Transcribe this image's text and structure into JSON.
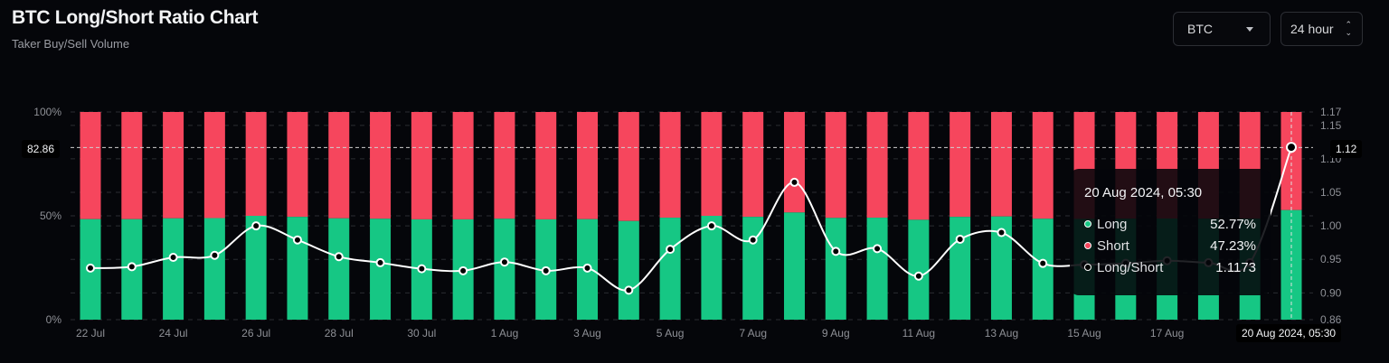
{
  "header": {
    "title": "BTC Long/Short Ratio Chart",
    "subtitle": "Taker Buy/Sell Volume"
  },
  "controls": {
    "symbol": "BTC",
    "interval": "24 hour"
  },
  "colors": {
    "long": "#16c784",
    "short": "#f6465d",
    "ratio": "#ffffff",
    "background": "#05060a"
  },
  "crosshair": {
    "left_label": "82.86",
    "right_label": "1.12",
    "x_label": "20 Aug 2024, 05:30"
  },
  "tooltip": {
    "date": "20 Aug 2024, 05:30",
    "rows": [
      {
        "label": "Long",
        "value": "52.77%"
      },
      {
        "label": "Short",
        "value": "47.23%"
      },
      {
        "label": "Long/Short",
        "value": "1.1173"
      }
    ]
  },
  "chart_data": {
    "type": "bar",
    "title": "BTC Long/Short Ratio Chart",
    "categories": [
      "22 Jul",
      "23 Jul",
      "24 Jul",
      "25 Jul",
      "26 Jul",
      "27 Jul",
      "28 Jul",
      "29 Jul",
      "30 Jul",
      "31 Jul",
      "1 Aug",
      "2 Aug",
      "3 Aug",
      "4 Aug",
      "5 Aug",
      "6 Aug",
      "7 Aug",
      "8 Aug",
      "9 Aug",
      "10 Aug",
      "11 Aug",
      "12 Aug",
      "13 Aug",
      "14 Aug",
      "15 Aug",
      "16 Aug",
      "17 Aug",
      "18 Aug",
      "19 Aug",
      "20 Aug"
    ],
    "x_tick_labels": [
      "22 Jul",
      "24 Jul",
      "26 Jul",
      "28 Jul",
      "30 Jul",
      "1 Aug",
      "3 Aug",
      "5 Aug",
      "7 Aug",
      "9 Aug",
      "11 Aug",
      "13 Aug",
      "15 Aug",
      "17 Aug"
    ],
    "series": [
      {
        "name": "Long",
        "unit": "%",
        "values": [
          48.4,
          48.4,
          48.8,
          48.9,
          50.0,
          49.5,
          48.8,
          48.6,
          48.3,
          48.3,
          48.6,
          48.3,
          48.4,
          47.5,
          49.1,
          50.0,
          49.5,
          51.6,
          49.0,
          49.1,
          48.1,
          49.5,
          49.7,
          48.6,
          48.5,
          48.6,
          48.7,
          48.6,
          48.6,
          52.77
        ]
      },
      {
        "name": "Short",
        "unit": "%",
        "values": [
          51.6,
          51.6,
          51.2,
          51.1,
          50.0,
          50.5,
          51.2,
          51.4,
          51.7,
          51.7,
          51.4,
          51.7,
          51.6,
          52.5,
          50.9,
          50.0,
          50.5,
          48.4,
          51.0,
          50.9,
          51.9,
          50.5,
          50.3,
          51.4,
          51.5,
          51.4,
          51.3,
          51.4,
          51.4,
          47.23
        ]
      },
      {
        "name": "Long/Short",
        "values": [
          0.937,
          0.939,
          0.953,
          0.956,
          1.0,
          0.979,
          0.954,
          0.945,
          0.936,
          0.933,
          0.946,
          0.933,
          0.937,
          0.904,
          0.965,
          1.0,
          0.979,
          1.065,
          0.962,
          0.966,
          0.925,
          0.98,
          0.99,
          0.944,
          0.942,
          0.944,
          0.948,
          0.945,
          0.945,
          1.1173
        ]
      }
    ],
    "left_axis": {
      "ticks": [
        "100%",
        "50%",
        "0%"
      ],
      "range": [
        0,
        100
      ]
    },
    "right_axis": {
      "ticks": [
        "1.17",
        "1.15",
        "1.10",
        "1.05",
        "1.00",
        "0.95",
        "0.90",
        "0.86"
      ],
      "range": [
        0.86,
        1.17
      ]
    },
    "legend": "tooltip",
    "grid": true
  }
}
